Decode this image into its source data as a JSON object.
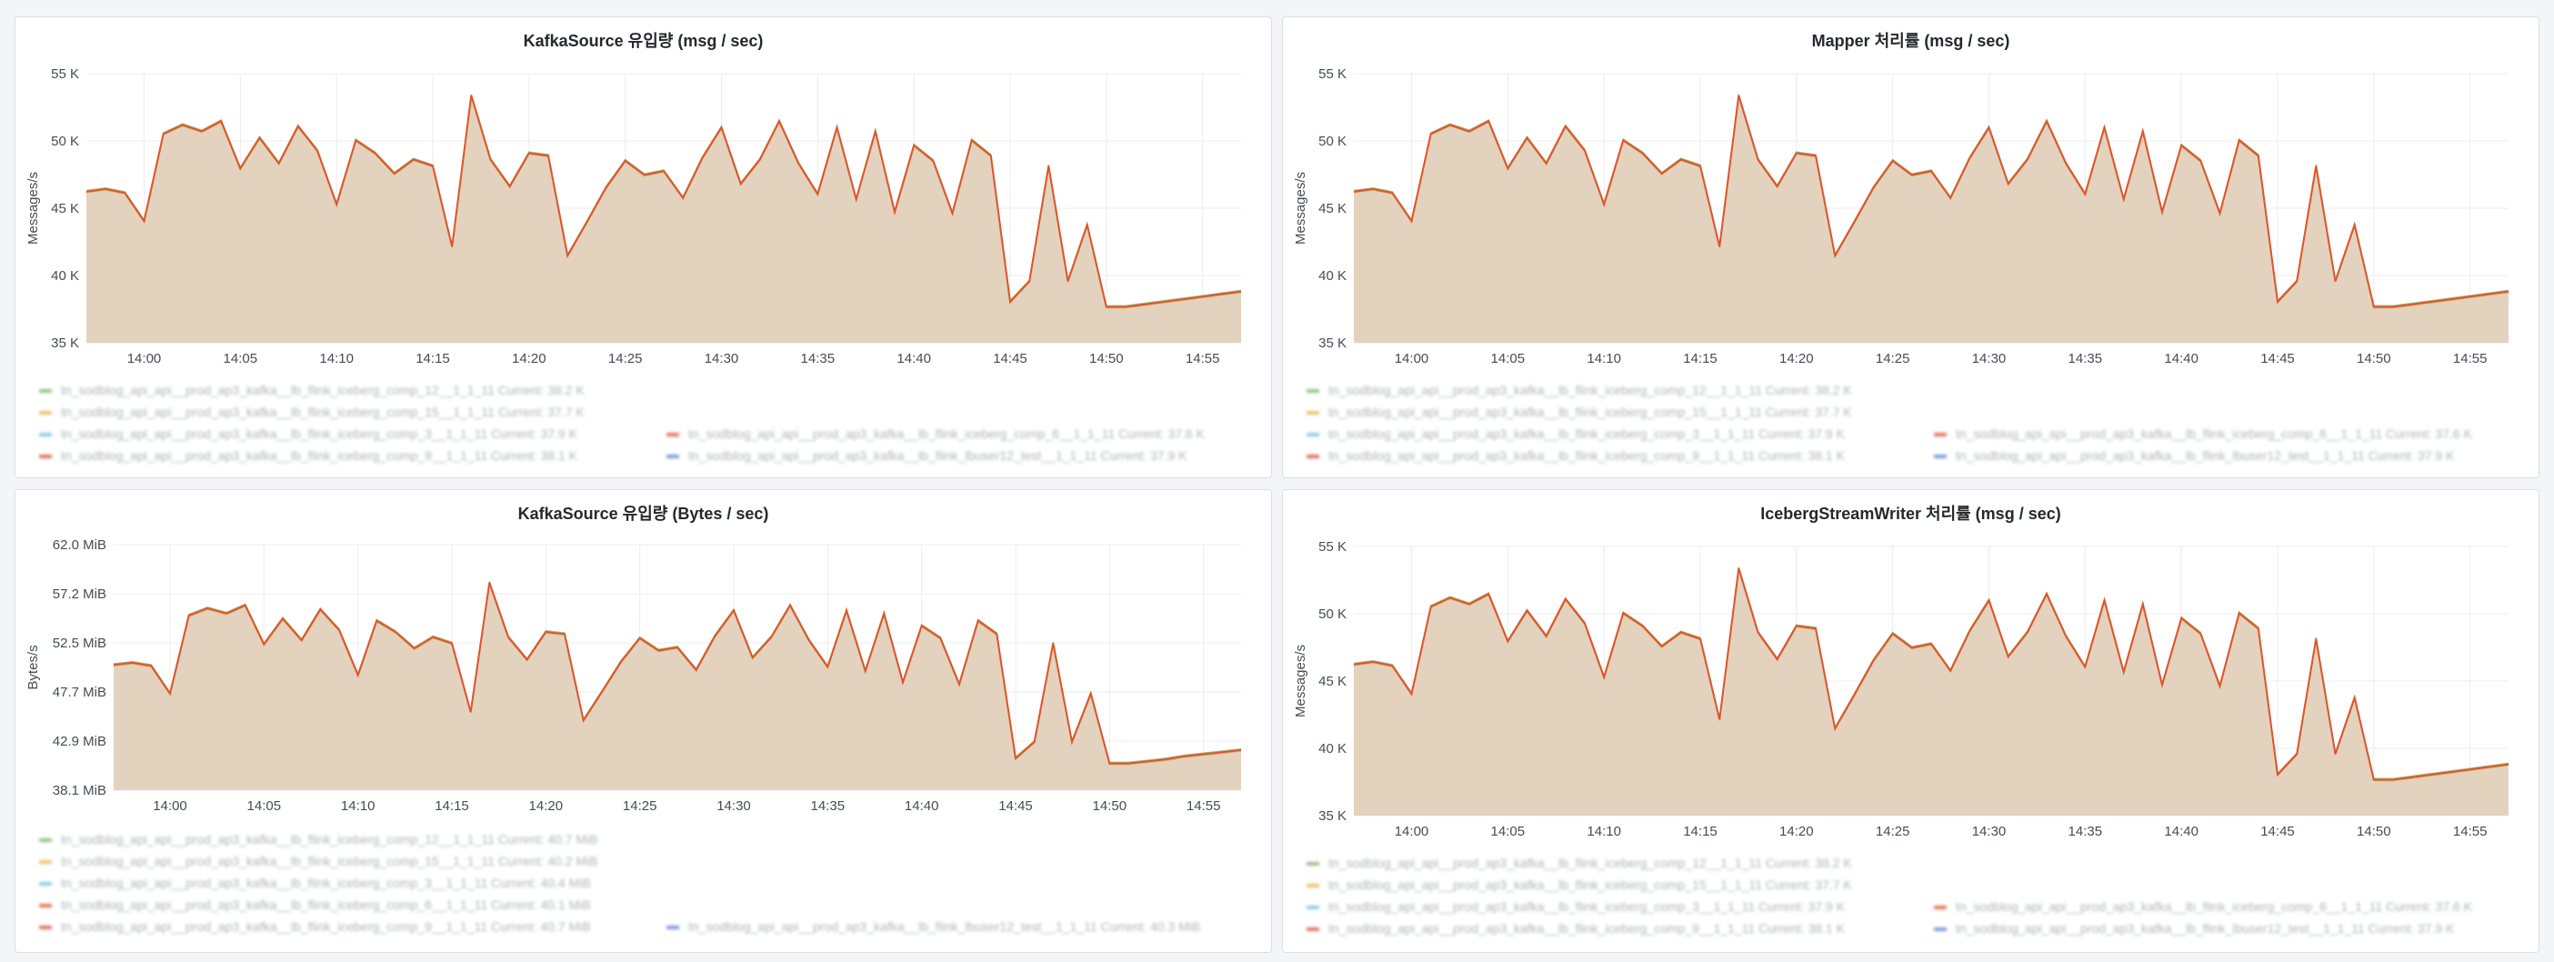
{
  "colors": {
    "fill": "#e3d2bd",
    "line_main": "#e0542c",
    "line_alt": "#d7a85a",
    "line_alt2": "#7fae68",
    "grid": "#ececec"
  },
  "panels": [
    {
      "title": "KafkaSource 유입량 (msg / sec)",
      "ylabel": "Messages/s",
      "yticks": [
        "55 K",
        "50 K",
        "45 K",
        "40 K",
        "35 K"
      ],
      "xticks": [
        "14:00",
        "14:05",
        "14:10",
        "14:15",
        "14:20",
        "14:25",
        "14:30",
        "14:35",
        "14:40",
        "14:45",
        "14:50",
        "14:55"
      ],
      "legend": [
        {
          "color": "#7fae68",
          "label": "tn_sodblog_api_api__prod_ap3_kafka__lb_flink_iceberg_comp_12__1_1_11  Current: 38.2 K"
        },
        {
          "color": "#e8b04a",
          "label": "tn_sodblog_api_api__prod_ap3_kafka__lb_flink_iceberg_comp_15__1_1_11  Current: 37.7 K"
        },
        {
          "color": "#6ec0e0",
          "label": "tn_sodblog_api_api__prod_ap3_kafka__lb_flink_iceberg_comp_3__1_1_11  Current: 37.9 K"
        },
        {
          "color": "#e0542c",
          "label": "tn_sodblog_api_api__prod_ap3_kafka__lb_flink_iceberg_comp_6__1_1_11  Current: 37.6 K"
        },
        {
          "color": "#d94c3c",
          "label": "tn_sodblog_api_api__prod_ap3_kafka__lb_flink_iceberg_comp_9__1_1_11  Current: 38.1 K"
        },
        {
          "color": "#5b7fd6",
          "label": "tn_sodblog_api_api__prod_ap3_kafka__lb_flink_lbuser12_test__1_1_11  Current: 37.9 K"
        }
      ]
    },
    {
      "title": "Mapper 처리률 (msg / sec)",
      "ylabel": "Messages/s",
      "yticks": [
        "55 K",
        "50 K",
        "45 K",
        "40 K",
        "35 K"
      ],
      "xticks": [
        "14:00",
        "14:05",
        "14:10",
        "14:15",
        "14:20",
        "14:25",
        "14:30",
        "14:35",
        "14:40",
        "14:45",
        "14:50",
        "14:55"
      ],
      "legend": [
        {
          "color": "#7fae68",
          "label": "tn_sodblog_api_api__prod_ap3_kafka__lb_flink_iceberg_comp_12__1_1_11  Current: 38.2 K"
        },
        {
          "color": "#e8b04a",
          "label": "tn_sodblog_api_api__prod_ap3_kafka__lb_flink_iceberg_comp_15__1_1_11  Current: 37.7 K"
        },
        {
          "color": "#6ec0e0",
          "label": "tn_sodblog_api_api__prod_ap3_kafka__lb_flink_iceberg_comp_3__1_1_11  Current: 37.9 K"
        },
        {
          "color": "#e0542c",
          "label": "tn_sodblog_api_api__prod_ap3_kafka__lb_flink_iceberg_comp_6__1_1_11  Current: 37.6 K"
        },
        {
          "color": "#d94c3c",
          "label": "tn_sodblog_api_api__prod_ap3_kafka__lb_flink_iceberg_comp_9__1_1_11  Current: 38.1 K"
        },
        {
          "color": "#5b7fd6",
          "label": "tn_sodblog_api_api__prod_ap3_kafka__lb_flink_lbuser12_test__1_1_11  Current: 37.9 K"
        }
      ]
    },
    {
      "title": "KafkaSource 유입량 (Bytes / sec)",
      "ylabel": "Bytes/s",
      "yticks": [
        "62.0 MiB",
        "57.2 MiB",
        "52.5 MiB",
        "47.7 MiB",
        "42.9 MiB",
        "38.1 MiB"
      ],
      "xticks": [
        "14:00",
        "14:05",
        "14:10",
        "14:15",
        "14:20",
        "14:25",
        "14:30",
        "14:35",
        "14:40",
        "14:45",
        "14:50",
        "14:55"
      ],
      "legend": [
        {
          "color": "#7fae68",
          "label": "tn_sodblog_api_api__prod_ap3_kafka__lb_flink_iceberg_comp_12__1_1_11  Current: 40.7 MiB"
        },
        {
          "color": "#e8b04a",
          "label": "tn_sodblog_api_api__prod_ap3_kafka__lb_flink_iceberg_comp_15__1_1_11  Current: 40.2 MiB"
        },
        {
          "color": "#6ec0e0",
          "label": "tn_sodblog_api_api__prod_ap3_kafka__lb_flink_iceberg_comp_3__1_1_11  Current: 40.4 MiB"
        },
        {
          "color": "#e0542c",
          "label": "tn_sodblog_api_api__prod_ap3_kafka__lb_flink_iceberg_comp_6__1_1_11  Current: 40.1 MiB"
        },
        {
          "color": "#d94c3c",
          "label": "tn_sodblog_api_api__prod_ap3_kafka__lb_flink_iceberg_comp_9__1_1_11  Current: 40.7 MiB"
        },
        {
          "color": "#5b7fd6",
          "label": "tn_sodblog_api_api__prod_ap3_kafka__lb_flink_lbuser12_test__1_1_11  Current: 40.3 MiB"
        }
      ]
    },
    {
      "title": "IcebergStreamWriter 처리률 (msg / sec)",
      "ylabel": "Messages/s",
      "yticks": [
        "55 K",
        "50 K",
        "45 K",
        "40 K",
        "35 K"
      ],
      "xticks": [
        "14:00",
        "14:05",
        "14:10",
        "14:15",
        "14:20",
        "14:25",
        "14:30",
        "14:35",
        "14:40",
        "14:45",
        "14:50",
        "14:55"
      ],
      "legend": [
        {
          "color": "#7fae68",
          "label": "tn_sodblog_api_api__prod_ap3_kafka__lb_flink_iceberg_comp_12__1_1_11  Current: 38.2 K"
        },
        {
          "color": "#e8b04a",
          "label": "tn_sodblog_api_api__prod_ap3_kafka__lb_flink_iceberg_comp_15__1_1_11  Current: 37.7 K"
        },
        {
          "color": "#6ec0e0",
          "label": "tn_sodblog_api_api__prod_ap3_kafka__lb_flink_iceberg_comp_3__1_1_11  Current: 37.9 K"
        },
        {
          "color": "#e0542c",
          "label": "tn_sodblog_api_api__prod_ap3_kafka__lb_flink_iceberg_comp_6__1_1_11  Current: 37.6 K"
        },
        {
          "color": "#d94c3c",
          "label": "tn_sodblog_api_api__prod_ap3_kafka__lb_flink_iceberg_comp_9__1_1_11  Current: 38.1 K"
        },
        {
          "color": "#5b7fd6",
          "label": "tn_sodblog_api_api__prod_ap3_kafka__lb_flink_lbuser12_test__1_1_11  Current: 37.9 K"
        }
      ]
    }
  ],
  "chart_data": [
    {
      "type": "area",
      "title": "KafkaSource 유입량 (msg / sec)",
      "ylabel": "Messages/s",
      "ylim": [
        35000,
        56000
      ],
      "xlim": [
        "13:57",
        "14:57"
      ],
      "grid": true,
      "legend_position": "bottom",
      "series": [
        {
          "x": [
            "13:57",
            "13:58",
            "13:59",
            "14:00",
            "14:01",
            "14:02",
            "14:03",
            "14:04",
            "14:05",
            "14:06",
            "14:07",
            "14:08",
            "14:09",
            "14:10",
            "14:11",
            "14:12",
            "14:13",
            "14:14",
            "14:15",
            "14:16",
            "14:17",
            "14:18",
            "14:19",
            "14:20",
            "14:21",
            "14:22",
            "14:23",
            "14:24",
            "14:25",
            "14:26",
            "14:27",
            "14:28",
            "14:29",
            "14:30",
            "14:31",
            "14:32",
            "14:33",
            "14:34",
            "14:35",
            "14:36",
            "14:37",
            "14:38",
            "14:39",
            "14:40",
            "14:41",
            "14:42",
            "14:43",
            "14:44",
            "14:45",
            "14:46",
            "14:47",
            "14:48",
            "14:49",
            "14:50",
            "14:51",
            "14:52",
            "14:53",
            "14:54",
            "14:55",
            "14:56",
            "14:57"
          ],
          "values": [
            46800,
            47000,
            46700,
            44500,
            51300,
            52000,
            51500,
            52300,
            48600,
            51000,
            49000,
            51900,
            50000,
            45800,
            50800,
            49800,
            48200,
            49300,
            48800,
            42500,
            54300,
            49300,
            47200,
            49800,
            49600,
            41800,
            44400,
            47100,
            49200,
            48100,
            48400,
            46300,
            49400,
            51800,
            47400,
            49300,
            52300,
            49000,
            46600,
            51800,
            46200,
            51500,
            45200,
            50400,
            49200,
            45100,
            50800,
            49600,
            38200,
            39800,
            48800,
            39800,
            44200,
            37800,
            37800,
            38000,
            38200,
            38400,
            38600,
            38800,
            39000
          ]
        }
      ]
    },
    {
      "type": "area",
      "title": "Mapper 처리률 (msg / sec)",
      "ylabel": "Messages/s",
      "ylim": [
        35000,
        56000
      ],
      "xlim": [
        "13:57",
        "14:57"
      ],
      "grid": true,
      "legend_position": "bottom",
      "series": [
        {
          "x": [
            "13:57",
            "13:58",
            "13:59",
            "14:00",
            "14:01",
            "14:02",
            "14:03",
            "14:04",
            "14:05",
            "14:06",
            "14:07",
            "14:08",
            "14:09",
            "14:10",
            "14:11",
            "14:12",
            "14:13",
            "14:14",
            "14:15",
            "14:16",
            "14:17",
            "14:18",
            "14:19",
            "14:20",
            "14:21",
            "14:22",
            "14:23",
            "14:24",
            "14:25",
            "14:26",
            "14:27",
            "14:28",
            "14:29",
            "14:30",
            "14:31",
            "14:32",
            "14:33",
            "14:34",
            "14:35",
            "14:36",
            "14:37",
            "14:38",
            "14:39",
            "14:40",
            "14:41",
            "14:42",
            "14:43",
            "14:44",
            "14:45",
            "14:46",
            "14:47",
            "14:48",
            "14:49",
            "14:50",
            "14:51",
            "14:52",
            "14:53",
            "14:54",
            "14:55",
            "14:56",
            "14:57"
          ],
          "values": [
            46800,
            47000,
            46700,
            44500,
            51300,
            52000,
            51500,
            52300,
            48600,
            51000,
            49000,
            51900,
            50000,
            45800,
            50800,
            49800,
            48200,
            49300,
            48800,
            42500,
            54300,
            49300,
            47200,
            49800,
            49600,
            41800,
            44400,
            47100,
            49200,
            48100,
            48400,
            46300,
            49400,
            51800,
            47400,
            49300,
            52300,
            49000,
            46600,
            51800,
            46200,
            51500,
            45200,
            50400,
            49200,
            45100,
            50800,
            49600,
            38200,
            39800,
            48800,
            39800,
            44200,
            37800,
            37800,
            38000,
            38200,
            38400,
            38600,
            38800,
            39000
          ]
        }
      ]
    },
    {
      "type": "area",
      "title": "KafkaSource 유입량 (Bytes / sec)",
      "ylabel": "Bytes/s",
      "ylim": [
        38.1,
        62.0
      ],
      "xlim": [
        "13:57",
        "14:57"
      ],
      "grid": true,
      "legend_position": "bottom",
      "series": [
        {
          "x": [
            "13:57",
            "13:58",
            "13:59",
            "14:00",
            "14:01",
            "14:02",
            "14:03",
            "14:04",
            "14:05",
            "14:06",
            "14:07",
            "14:08",
            "14:09",
            "14:10",
            "14:11",
            "14:12",
            "14:13",
            "14:14",
            "14:15",
            "14:16",
            "14:17",
            "14:18",
            "14:19",
            "14:20",
            "14:21",
            "14:22",
            "14:23",
            "14:24",
            "14:25",
            "14:26",
            "14:27",
            "14:28",
            "14:29",
            "14:30",
            "14:31",
            "14:32",
            "14:33",
            "14:34",
            "14:35",
            "14:36",
            "14:37",
            "14:38",
            "14:39",
            "14:40",
            "14:41",
            "14:42",
            "14:43",
            "14:44",
            "14:45",
            "14:46",
            "14:47",
            "14:48",
            "14:49",
            "14:50",
            "14:51",
            "14:52",
            "14:53",
            "14:54",
            "14:55",
            "14:56",
            "14:57"
          ],
          "values": [
            50.3,
            50.5,
            50.2,
            47.5,
            55.1,
            55.8,
            55.3,
            56.1,
            52.3,
            54.8,
            52.7,
            55.7,
            53.7,
            49.3,
            54.6,
            53.5,
            51.9,
            53.0,
            52.4,
            45.7,
            58.3,
            53.0,
            50.8,
            53.5,
            53.3,
            44.9,
            47.7,
            50.6,
            52.9,
            51.7,
            52.0,
            49.8,
            53.1,
            55.6,
            51.0,
            53.0,
            56.1,
            52.7,
            50.1,
            55.6,
            49.7,
            55.3,
            48.6,
            54.1,
            52.9,
            48.4,
            54.6,
            53.3,
            41.2,
            42.8,
            52.4,
            42.8,
            47.5,
            40.7,
            40.7,
            40.9,
            41.1,
            41.4,
            41.6,
            41.8,
            42.0
          ]
        }
      ]
    },
    {
      "type": "area",
      "title": "IcebergStreamWriter 처리률 (msg / sec)",
      "ylabel": "Messages/s",
      "ylim": [
        35000,
        56000
      ],
      "xlim": [
        "13:57",
        "14:57"
      ],
      "grid": true,
      "legend_position": "bottom",
      "series": [
        {
          "x": [
            "13:57",
            "13:58",
            "13:59",
            "14:00",
            "14:01",
            "14:02",
            "14:03",
            "14:04",
            "14:05",
            "14:06",
            "14:07",
            "14:08",
            "14:09",
            "14:10",
            "14:11",
            "14:12",
            "14:13",
            "14:14",
            "14:15",
            "14:16",
            "14:17",
            "14:18",
            "14:19",
            "14:20",
            "14:21",
            "14:22",
            "14:23",
            "14:24",
            "14:25",
            "14:26",
            "14:27",
            "14:28",
            "14:29",
            "14:30",
            "14:31",
            "14:32",
            "14:33",
            "14:34",
            "14:35",
            "14:36",
            "14:37",
            "14:38",
            "14:39",
            "14:40",
            "14:41",
            "14:42",
            "14:43",
            "14:44",
            "14:45",
            "14:46",
            "14:47",
            "14:48",
            "14:49",
            "14:50",
            "14:51",
            "14:52",
            "14:53",
            "14:54",
            "14:55",
            "14:56",
            "14:57"
          ],
          "values": [
            46800,
            47000,
            46700,
            44500,
            51300,
            52000,
            51500,
            52300,
            48600,
            51000,
            49000,
            51900,
            50000,
            45800,
            50800,
            49800,
            48200,
            49300,
            48800,
            42500,
            54300,
            49300,
            47200,
            49800,
            49600,
            41800,
            44400,
            47100,
            49200,
            48100,
            48400,
            46300,
            49400,
            51800,
            47400,
            49300,
            52300,
            49000,
            46600,
            51800,
            46200,
            51500,
            45200,
            50400,
            49200,
            45100,
            50800,
            49600,
            38200,
            39800,
            48800,
            39800,
            44200,
            37800,
            37800,
            38000,
            38200,
            38400,
            38600,
            38800,
            39000
          ]
        }
      ]
    }
  ]
}
